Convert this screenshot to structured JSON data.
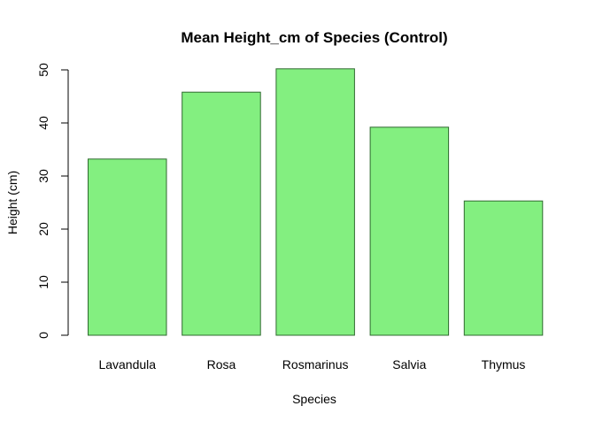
{
  "chart_data": {
    "type": "bar",
    "title": "Mean Height_cm of Species (Control)",
    "xlabel": "Species",
    "ylabel": "Height (cm)",
    "categories": [
      "Lavandula",
      "Rosa",
      "Rosmarinus",
      "Salvia",
      "Thymus"
    ],
    "values": [
      33.2,
      45.8,
      50.2,
      39.2,
      25.3
    ],
    "ylim": [
      0,
      50
    ],
    "yticks": [
      0,
      10,
      20,
      30,
      40,
      50
    ],
    "grid": false,
    "bar_fill": "#83ef80",
    "bar_stroke": "#2f6a2f"
  }
}
